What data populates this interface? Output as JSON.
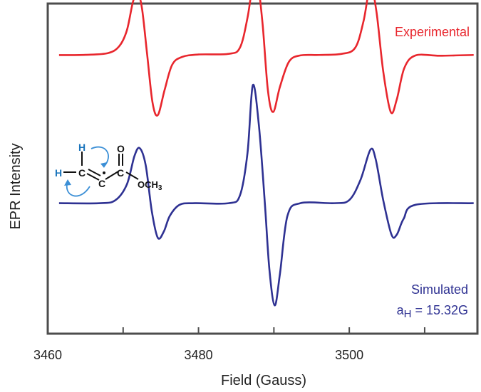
{
  "chart_data": {
    "type": "line",
    "title": "",
    "xlabel": "Field (Gauss)",
    "ylabel": "EPR Intensity",
    "xlim": [
      3460,
      3517
    ],
    "ticks": [
      3460,
      3470,
      3480,
      3490,
      3500,
      3510
    ],
    "tick_labels": [
      "3460",
      "",
      "3480",
      "",
      "3500",
      ""
    ],
    "y_ticks": "none",
    "grid": false,
    "series": [
      {
        "name": "Experimental",
        "color": "#e8262d",
        "offset": 0.72,
        "x": [
          3461.5,
          3465,
          3468,
          3469.5,
          3470.5,
          3471.3,
          3471.9,
          3472.5,
          3473.2,
          3473.9,
          3474.6,
          3475.5,
          3476.5,
          3477.8,
          3480,
          3484,
          3485.5,
          3486.5,
          3487.2,
          3487.8,
          3488.5,
          3489.2,
          3489.9,
          3490.8,
          3492,
          3493.5,
          3496,
          3499,
          3500.8,
          3501.9,
          3502.8,
          3503.6,
          3504.5,
          3505.5,
          3506.3,
          3507.3,
          3508.8,
          3512,
          3516.5
        ],
        "y": [
          0.002,
          0.004,
          0.015,
          0.06,
          0.16,
          0.34,
          0.4,
          0.3,
          0.0,
          -0.3,
          -0.38,
          -0.22,
          -0.06,
          -0.01,
          0.006,
          0.01,
          0.05,
          0.24,
          0.45,
          0.48,
          0.2,
          -0.22,
          -0.36,
          -0.2,
          -0.04,
          0.0,
          0.003,
          0.01,
          0.05,
          0.22,
          0.44,
          0.28,
          -0.1,
          -0.36,
          -0.28,
          -0.08,
          0.0,
          -0.002,
          0.003
        ]
      },
      {
        "name": "Simulated",
        "color": "#2e3192",
        "offset": -0.22,
        "x": [
          3461.5,
          3467,
          3469,
          3470.5,
          3471.5,
          3472.2,
          3473,
          3473.8,
          3474.6,
          3475.4,
          3476.2,
          3477.5,
          3479.5,
          3484,
          3485.5,
          3486.5,
          3487.2,
          3488,
          3488.8,
          3489.4,
          3490.1,
          3490.8,
          3491.8,
          3493.5,
          3498,
          3500,
          3501.5,
          3502.8,
          3503.5,
          3504.5,
          3505.6,
          3506.3,
          3507.2,
          3508.8,
          3516.5
        ],
        "y": [
          0.0,
          0.0,
          0.02,
          0.12,
          0.3,
          0.35,
          0.24,
          -0.05,
          -0.22,
          -0.18,
          -0.08,
          -0.01,
          0.0,
          0.0,
          0.05,
          0.32,
          0.75,
          0.5,
          0.0,
          -0.42,
          -0.65,
          -0.45,
          -0.08,
          0.0,
          0.0,
          0.02,
          0.15,
          0.34,
          0.28,
          0.02,
          -0.2,
          -0.2,
          -0.1,
          -0.01,
          0.0
        ]
      }
    ]
  },
  "legend": {
    "experimental": "Experimental",
    "simulated": "Simulated",
    "coupling_prefix": "a",
    "coupling_sub": "H",
    "coupling_value": " = 15.32G"
  },
  "molecule": {
    "h_top": "H",
    "h_left": "H",
    "c_left": "C",
    "c_mid": "C",
    "c_right": "C",
    "o_top": "O",
    "o_ch3": "OCH",
    "o_ch3_sub": "3",
    "h_color": "#1b75bc",
    "arrow_color": "#3b8fd6"
  }
}
